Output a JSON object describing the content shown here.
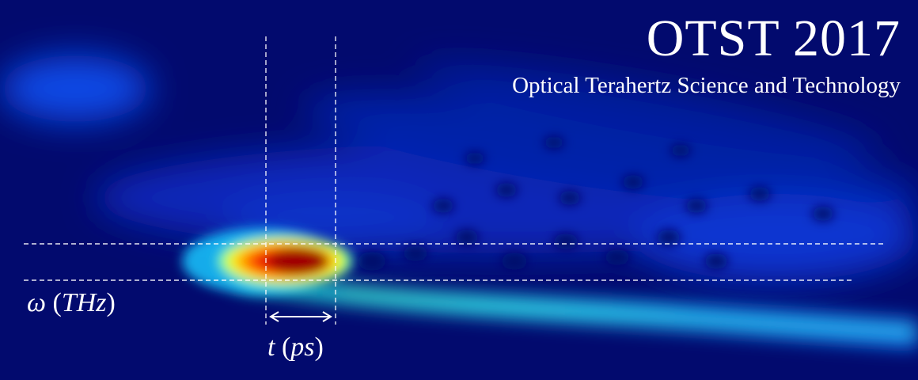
{
  "banner": {
    "title": "OTST 2017",
    "subtitle": "Optical Terahertz Science and Technology",
    "colors": {
      "background": "#020a6e",
      "hotspot": "#a00000",
      "annotation": "#ffffff"
    }
  },
  "axes": {
    "frequency": {
      "symbol": "ω",
      "open": " (",
      "unit": "THz",
      "close": ")"
    },
    "time": {
      "symbol": "t",
      "open": " (",
      "unit": "ps",
      "close": ")"
    }
  },
  "markers": {
    "arrow_icon": "double-headed-arrow-icon"
  }
}
